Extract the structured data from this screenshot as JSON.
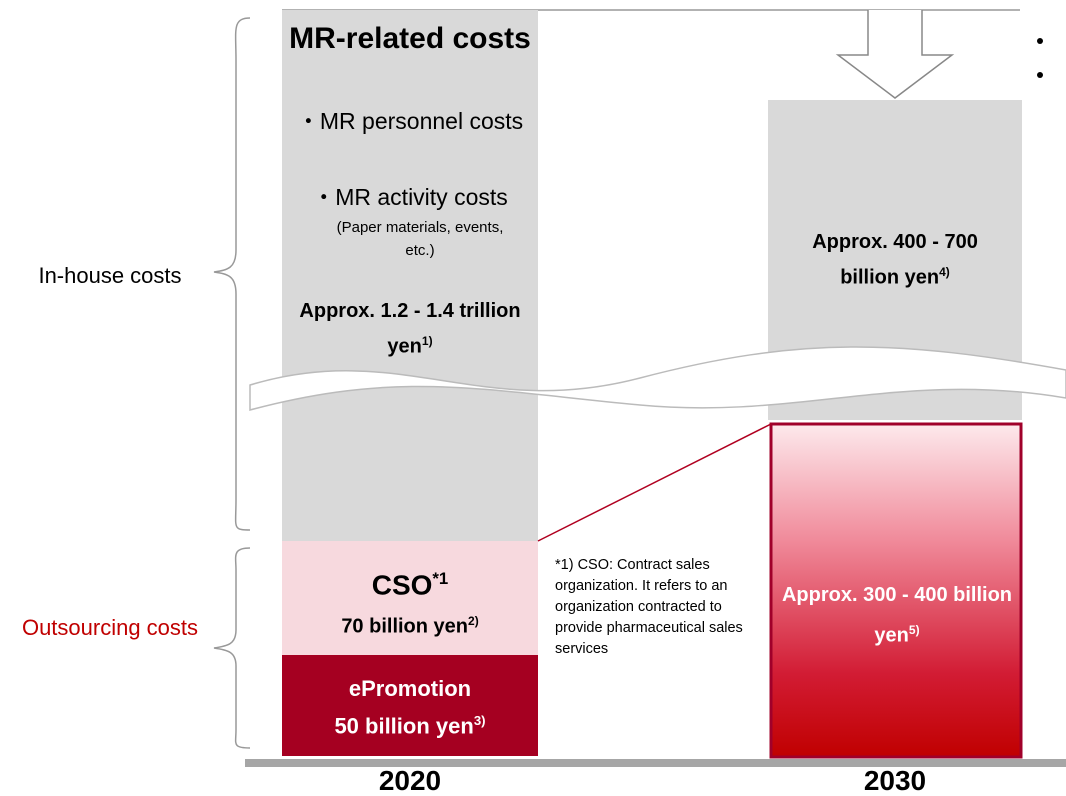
{
  "left_column": {
    "year": "2020",
    "mr_title": "MR-related costs",
    "items": [
      "・MR personnel costs",
      "・MR activity costs"
    ],
    "item_detail": "(Paper materials, events, etc.)",
    "in_house_amount": {
      "text": "Approx. 1.2 - 1.4 trillion yen",
      "note": "1)"
    },
    "cso": {
      "text": "CSO",
      "note": "*1"
    },
    "cso_amount": {
      "text": "70 billion yen",
      "note": "2)"
    },
    "epromotion": "ePromotion",
    "epromotion_amount": {
      "text": "50 billion yen",
      "note": "3)"
    }
  },
  "right_column": {
    "year": "2030",
    "in_house_amount": {
      "text": "Approx. 400 - 700 billion yen",
      "note": "4)"
    },
    "outsourcing_amount": {
      "text": "Approx. 300 - 400 billion yen",
      "note": "5)"
    }
  },
  "labels": {
    "in_house": "In-house costs",
    "outsourcing": "Outsourcing costs"
  },
  "footnote": "*1) CSO: Contract sales organization. It refers to an organization contracted to provide pharmaceutical sales services"
}
